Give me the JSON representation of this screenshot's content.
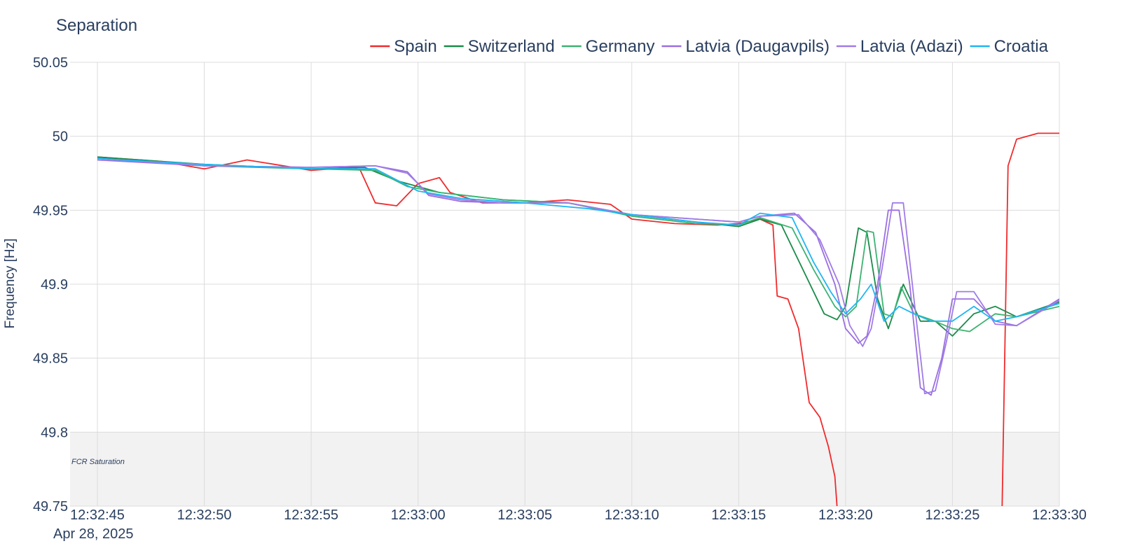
{
  "chart_data": {
    "type": "line",
    "title": "Separation",
    "ylabel": "Frequency [Hz]",
    "xlabel": "",
    "x_date_label": "Apr 28, 2025",
    "ylim": [
      49.75,
      50.05
    ],
    "xlim": [
      "12:32:45",
      "12:33:30"
    ],
    "x_ticks": [
      "12:32:45",
      "12:32:50",
      "12:32:55",
      "12:33:00",
      "12:33:05",
      "12:33:10",
      "12:33:15",
      "12:33:20",
      "12:33:25",
      "12:33:30"
    ],
    "y_ticks": [
      49.75,
      49.8,
      49.85,
      49.9,
      49.95,
      50,
      50.05
    ],
    "y_tick_labels": [
      "49.75",
      "49.8",
      "49.85",
      "49.9",
      "49.95",
      "50",
      "50.05"
    ],
    "grid": true,
    "legend_position": "top-right",
    "shaded_region": {
      "y_from": 49.75,
      "y_to": 49.8,
      "label": "FCR Saturation",
      "color": "#f2f2f2"
    },
    "series": [
      {
        "name": "Spain",
        "color": "#ef2b2d",
        "x": [
          "12:32:45",
          "12:32:48",
          "12:32:50",
          "12:32:52",
          "12:32:55",
          "12:32:57",
          "12:32:57.3",
          "12:32:58",
          "12:32:59",
          "12:33:00",
          "12:33:01",
          "12:33:01.5",
          "12:33:03",
          "12:33:05",
          "12:33:07",
          "12:33:09",
          "12:33:10",
          "12:33:12",
          "12:33:14",
          "12:33:15",
          "12:33:16",
          "12:33:16.6",
          "12:33:16.8",
          "12:33:17.3",
          "12:33:17.8",
          "12:33:18.3",
          "12:33:18.8",
          "12:33:19.2",
          "12:33:19.5",
          "12:33:19.7",
          "12:33:27.3",
          "12:33:27.6",
          "12:33:28",
          "12:33:29",
          "12:33:30"
        ],
        "y": [
          49.986,
          49.983,
          49.978,
          49.984,
          49.977,
          49.979,
          49.977,
          49.955,
          49.953,
          49.968,
          49.972,
          49.962,
          49.955,
          49.955,
          49.957,
          49.954,
          49.944,
          49.941,
          49.94,
          49.941,
          49.944,
          49.94,
          49.892,
          49.89,
          49.87,
          49.82,
          49.81,
          49.79,
          49.77,
          49.73,
          49.73,
          49.98,
          49.998,
          50.002,
          50.002
        ]
      },
      {
        "name": "Switzerland",
        "color": "#1a8b4a",
        "x": [
          "12:32:45",
          "12:32:50",
          "12:32:55",
          "12:32:57.5",
          "12:32:59",
          "12:33:01",
          "12:33:04",
          "12:33:07",
          "12:33:10",
          "12:33:13",
          "12:33:15",
          "12:33:16",
          "12:33:17",
          "12:33:18",
          "12:33:19",
          "12:33:19.6",
          "12:33:20",
          "12:33:20.6",
          "12:33:21",
          "12:33:21.5",
          "12:33:22",
          "12:33:22.7",
          "12:33:23.5",
          "12:33:24.2",
          "12:33:25",
          "12:33:26",
          "12:33:27",
          "12:33:28",
          "12:33:30"
        ],
        "y": [
          49.986,
          49.981,
          49.978,
          49.979,
          49.97,
          49.962,
          49.957,
          49.955,
          49.947,
          49.942,
          49.939,
          49.944,
          49.94,
          49.91,
          49.88,
          49.876,
          49.885,
          49.938,
          49.935,
          49.89,
          49.87,
          49.9,
          49.875,
          49.875,
          49.865,
          49.88,
          49.885,
          49.878,
          49.888
        ]
      },
      {
        "name": "Germany",
        "color": "#3cb371",
        "x": [
          "12:32:45",
          "12:32:50",
          "12:32:55",
          "12:32:58",
          "12:32:59.5",
          "12:33:01",
          "12:33:04",
          "12:33:07",
          "12:33:10",
          "12:33:13",
          "12:33:15",
          "12:33:16",
          "12:33:17.5",
          "12:33:18.5",
          "12:33:19.5",
          "12:33:20",
          "12:33:20.5",
          "12:33:21",
          "12:33:21.3",
          "12:33:21.8",
          "12:33:22.2",
          "12:33:22.6",
          "12:33:23.2",
          "12:33:24",
          "12:33:25",
          "12:33:25.8",
          "12:33:27",
          "12:33:28",
          "12:33:30"
        ],
        "y": [
          49.985,
          49.98,
          49.978,
          49.977,
          49.966,
          49.962,
          49.957,
          49.955,
          49.946,
          49.941,
          49.94,
          49.945,
          49.938,
          49.91,
          49.885,
          49.878,
          49.885,
          49.936,
          49.935,
          49.88,
          49.878,
          49.898,
          49.88,
          49.876,
          49.87,
          49.868,
          49.88,
          49.878,
          49.885
        ]
      },
      {
        "name": "Latvia (Daugavpils)",
        "color": "#9b6fe0",
        "x": [
          "12:32:45",
          "12:32:50",
          "12:32:55",
          "12:32:58",
          "12:32:59.5",
          "12:33:00.5",
          "12:33:02",
          "12:33:04",
          "12:33:07",
          "12:33:10",
          "12:33:13",
          "12:33:15",
          "12:33:16",
          "12:33:17.6",
          "12:33:18.6",
          "12:33:19.5",
          "12:33:20",
          "12:33:20.6",
          "12:33:21",
          "12:33:21.5",
          "12:33:22",
          "12:33:22.5",
          "12:33:23",
          "12:33:23.5",
          "12:33:24",
          "12:33:24.5",
          "12:33:25",
          "12:33:26",
          "12:33:27",
          "12:33:28",
          "12:33:30"
        ],
        "y": [
          49.984,
          49.98,
          49.979,
          49.98,
          49.976,
          49.96,
          49.956,
          49.955,
          49.955,
          49.947,
          49.944,
          49.942,
          49.946,
          49.948,
          49.935,
          49.9,
          49.87,
          49.86,
          49.865,
          49.9,
          49.95,
          49.95,
          49.9,
          49.83,
          49.825,
          49.85,
          49.89,
          49.89,
          49.875,
          49.872,
          49.89
        ]
      },
      {
        "name": "Latvia (Adazi)",
        "color": "#a07ce6",
        "x": [
          "12:32:45",
          "12:32:50",
          "12:32:55",
          "12:32:58",
          "12:32:59.5",
          "12:33:00.5",
          "12:33:02",
          "12:33:04",
          "12:33:07",
          "12:33:10",
          "12:33:13",
          "12:33:15",
          "12:33:16",
          "12:33:17.8",
          "12:33:18.8",
          "12:33:19.7",
          "12:33:20.2",
          "12:33:20.8",
          "12:33:21.2",
          "12:33:21.7",
          "12:33:22.2",
          "12:33:22.7",
          "12:33:23.2",
          "12:33:23.7",
          "12:33:24.2",
          "12:33:24.7",
          "12:33:25.2",
          "12:33:26",
          "12:33:27",
          "12:33:28",
          "12:33:30"
        ],
        "y": [
          49.985,
          49.98,
          49.979,
          49.98,
          49.975,
          49.961,
          49.957,
          49.955,
          49.955,
          49.947,
          49.944,
          49.942,
          49.946,
          49.947,
          49.93,
          49.9,
          49.872,
          49.858,
          49.87,
          49.91,
          49.955,
          49.955,
          49.89,
          49.826,
          49.828,
          49.86,
          49.895,
          49.895,
          49.873,
          49.872,
          49.889
        ]
      },
      {
        "name": "Croatia",
        "color": "#1fb6f2",
        "x": [
          "12:32:45",
          "12:32:50",
          "12:32:55",
          "12:32:58",
          "12:33:00",
          "12:33:02",
          "12:33:05",
          "12:33:08",
          "12:33:10",
          "12:33:13",
          "12:33:15",
          "12:33:16",
          "12:33:17.5",
          "12:33:18.5",
          "12:33:19.3",
          "12:33:20",
          "12:33:20.7",
          "12:33:21.2",
          "12:33:21.8",
          "12:33:22.5",
          "12:33:23.2",
          "12:33:24",
          "12:33:25",
          "12:33:26",
          "12:33:27",
          "12:33:28",
          "12:33:30"
        ],
        "y": [
          49.985,
          49.981,
          49.978,
          49.978,
          49.963,
          49.958,
          49.955,
          49.951,
          49.947,
          49.942,
          49.94,
          49.948,
          49.945,
          49.915,
          49.895,
          49.88,
          49.89,
          49.9,
          49.875,
          49.885,
          49.88,
          49.875,
          49.875,
          49.885,
          49.875,
          49.878,
          49.887
        ]
      }
    ]
  }
}
